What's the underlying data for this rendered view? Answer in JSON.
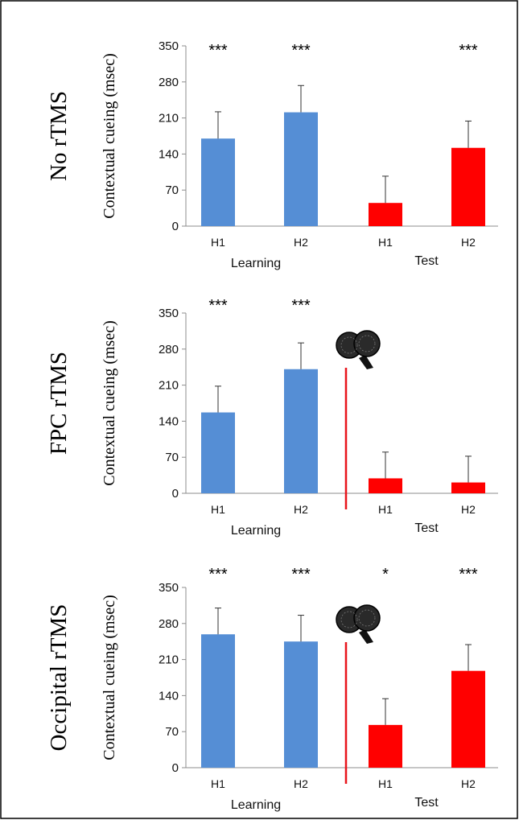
{
  "colors": {
    "learning": "#558ed5",
    "test": "#ff0000",
    "marker": "#e8141b"
  },
  "icons": {
    "coil": "tms-coil-icon"
  },
  "chart_data": [
    {
      "type": "bar",
      "panel_label": "No rTMS",
      "ylabel": "Contextual cueing (msec)",
      "ylim": [
        0,
        350
      ],
      "yticks": [
        0,
        70,
        140,
        210,
        280,
        350
      ],
      "categories": [
        "H1",
        "H2",
        "H1",
        "H2"
      ],
      "groups": [
        {
          "label": "Learning",
          "indices": [
            0,
            1
          ]
        },
        {
          "label": "Test",
          "indices": [
            2,
            3
          ]
        }
      ],
      "values": [
        170,
        221,
        45,
        152
      ],
      "errors": [
        52,
        52,
        52,
        52
      ],
      "significance": [
        "***",
        "***",
        "",
        "***"
      ],
      "series_colors": [
        "learning",
        "learning",
        "test",
        "test"
      ],
      "stimulation_marker": false
    },
    {
      "type": "bar",
      "panel_label": "FPC rTMS",
      "ylabel": "Contextual cueing (msec)",
      "ylim": [
        0,
        350
      ],
      "yticks": [
        0,
        70,
        140,
        210,
        280,
        350
      ],
      "categories": [
        "H1",
        "H2",
        "H1",
        "H2"
      ],
      "groups": [
        {
          "label": "Learning",
          "indices": [
            0,
            1
          ]
        },
        {
          "label": "Test",
          "indices": [
            2,
            3
          ]
        }
      ],
      "values": [
        157,
        241,
        29,
        21
      ],
      "errors": [
        51,
        51,
        51,
        51
      ],
      "significance": [
        "***",
        "***",
        "",
        ""
      ],
      "series_colors": [
        "learning",
        "learning",
        "test",
        "test"
      ],
      "stimulation_marker": true
    },
    {
      "type": "bar",
      "panel_label": "Occipital rTMS",
      "ylabel": "Contextual cueing (msec)",
      "ylim": [
        0,
        350
      ],
      "yticks": [
        0,
        70,
        140,
        210,
        280,
        350
      ],
      "categories": [
        "H1",
        "H2",
        "H1",
        "H2"
      ],
      "groups": [
        {
          "label": "Learning",
          "indices": [
            0,
            1
          ]
        },
        {
          "label": "Test",
          "indices": [
            2,
            3
          ]
        }
      ],
      "values": [
        259,
        245,
        83,
        188
      ],
      "errors": [
        51,
        51,
        51,
        51
      ],
      "significance": [
        "***",
        "***",
        "*",
        "***"
      ],
      "series_colors": [
        "learning",
        "learning",
        "test",
        "test"
      ],
      "stimulation_marker": true
    }
  ]
}
